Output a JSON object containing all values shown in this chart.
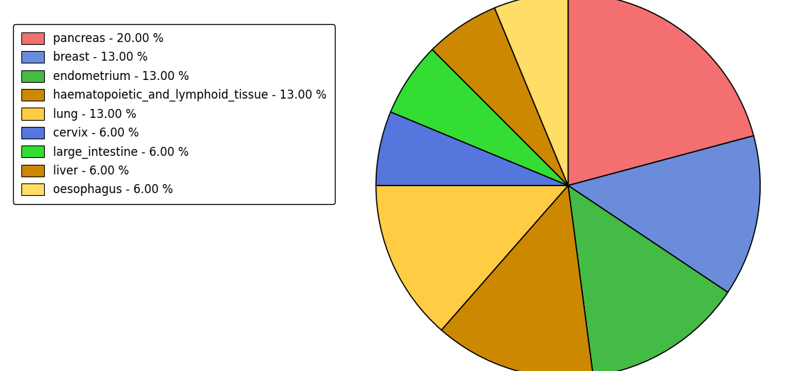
{
  "labels": [
    "pancreas",
    "breast",
    "endometrium",
    "haematopoietic_and_lymphoid_tissue",
    "lung",
    "cervix",
    "large_intestine",
    "liver",
    "oesophagus"
  ],
  "values": [
    20,
    13,
    13,
    13,
    13,
    6,
    6,
    6,
    6
  ],
  "colors": [
    "#F47070",
    "#6B8CDB",
    "#44BB44",
    "#CC8800",
    "#FFCC44",
    "#5577DD",
    "#33DD33",
    "#CC8800",
    "#FFDD66"
  ],
  "legend_labels": [
    "pancreas - 20.00 %",
    "breast - 13.00 %",
    "endometrium - 13.00 %",
    "haematopoietic_and_lymphoid_tissue - 13.00 %",
    "lung - 13.00 %",
    "cervix - 6.00 %",
    "large_intestine - 6.00 %",
    "liver - 6.00 %",
    "oesophagus - 6.00 %"
  ],
  "figsize": [
    11.45,
    5.38
  ],
  "dpi": 100,
  "start_angle": 90,
  "counterclock": false
}
